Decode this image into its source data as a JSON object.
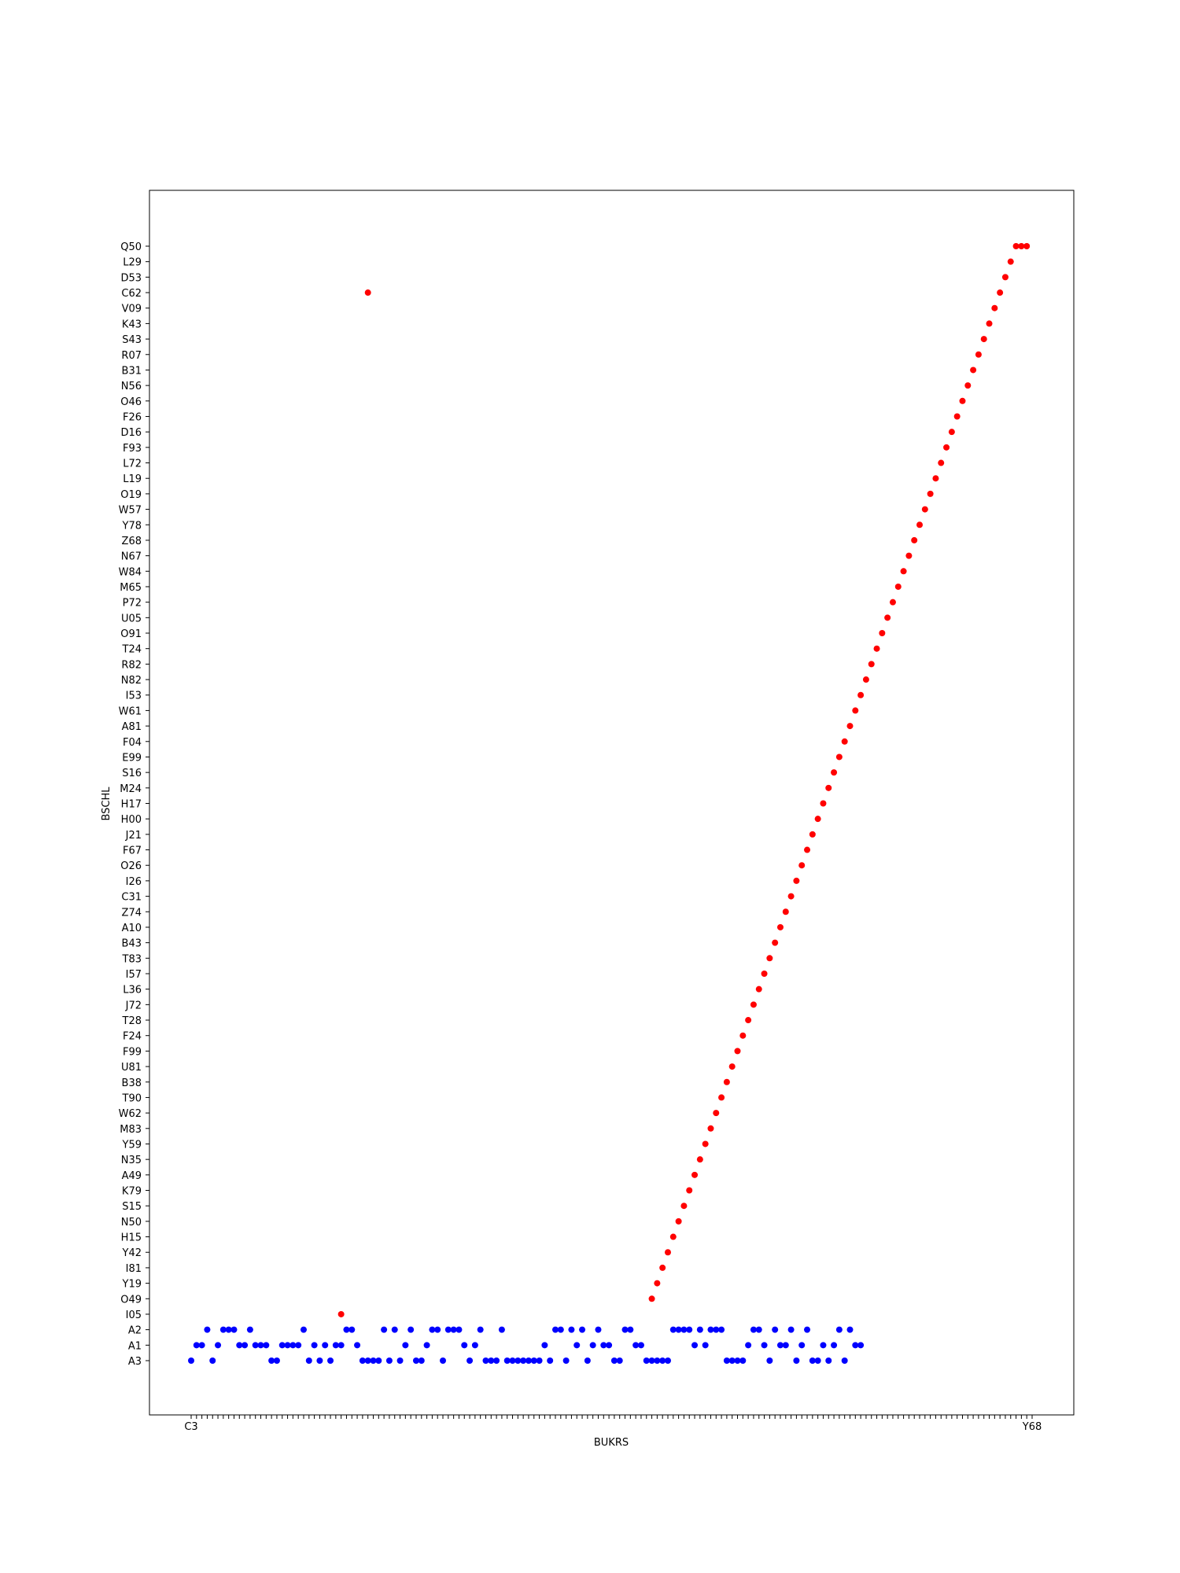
{
  "chart_data": {
    "type": "scatter",
    "title": "",
    "xlabel": "BUKRS",
    "ylabel": "BSCHL",
    "grid": false,
    "legend": "none",
    "x_categories_count": 158,
    "x_first_tick_label": "C3",
    "x_last_tick_label": "Y68",
    "y_categories": [
      "A3",
      "A1",
      "A2",
      "I05",
      "O49",
      "Y19",
      "I81",
      "Y42",
      "H15",
      "N50",
      "S15",
      "K79",
      "A49",
      "N35",
      "Y59",
      "M83",
      "W62",
      "T90",
      "B38",
      "U81",
      "F99",
      "F24",
      "T28",
      "J72",
      "L36",
      "I57",
      "T83",
      "B43",
      "A10",
      "Z74",
      "C31",
      "I26",
      "O26",
      "F67",
      "J21",
      "H00",
      "H17",
      "M24",
      "S16",
      "E99",
      "F04",
      "A81",
      "W61",
      "I53",
      "N82",
      "R82",
      "T24",
      "O91",
      "U05",
      "P72",
      "M65",
      "W84",
      "N67",
      "Z68",
      "Y78",
      "W57",
      "O19",
      "L19",
      "L72",
      "F93",
      "D16",
      "F26",
      "O46",
      "N56",
      "B31",
      "R07",
      "S43",
      "K43",
      "V09",
      "C62",
      "D53",
      "L29",
      "Q50"
    ],
    "series": [
      {
        "name": "",
        "color": "#0000ff",
        "x_indices": [
          0,
          1,
          2,
          3,
          4,
          5,
          6,
          7,
          8,
          9,
          10,
          11,
          12,
          13,
          14,
          15,
          16,
          17,
          18,
          19,
          20,
          21,
          22,
          23,
          24,
          25,
          26,
          27,
          28,
          29,
          30,
          31,
          32,
          33,
          34,
          35,
          36,
          37,
          38,
          39,
          40,
          41,
          42,
          43,
          44,
          45,
          46,
          47,
          48,
          49,
          50,
          51,
          52,
          53,
          54,
          55,
          56,
          57,
          58,
          59,
          60,
          61,
          62,
          63,
          64,
          65,
          66,
          67,
          68,
          69,
          70,
          71,
          72,
          73,
          74,
          75,
          76,
          77,
          78,
          79,
          80,
          81,
          82,
          83,
          84,
          85,
          86,
          87,
          88,
          89,
          90,
          91,
          92,
          93,
          94,
          95,
          96,
          97,
          98,
          99,
          100,
          101,
          102,
          103,
          104,
          105,
          106,
          107,
          108,
          109,
          110,
          111,
          112,
          113,
          114,
          115,
          116,
          117,
          118,
          119,
          120,
          121,
          122,
          123,
          124,
          125
        ],
        "y_values": [
          "A3",
          "A1",
          "A1",
          "A2",
          "A3",
          "A1",
          "A2",
          "A2",
          "A2",
          "A1",
          "A1",
          "A2",
          "A1",
          "A1",
          "A1",
          "A3",
          "A3",
          "A1",
          "A1",
          "A1",
          "A1",
          "A2",
          "A3",
          "A1",
          "A3",
          "A1",
          "A3",
          "A1",
          "A1",
          "A2",
          "A2",
          "A1",
          "A3",
          "A3",
          "A3",
          "A3",
          "A2",
          "A3",
          "A2",
          "A3",
          "A1",
          "A2",
          "A3",
          "A3",
          "A1",
          "A2",
          "A2",
          "A3",
          "A2",
          "A2",
          "A2",
          "A1",
          "A3",
          "A1",
          "A2",
          "A3",
          "A3",
          "A3",
          "A2",
          "A3",
          "A3",
          "A3",
          "A3",
          "A3",
          "A3",
          "A3",
          "A1",
          "A3",
          "A2",
          "A2",
          "A3",
          "A2",
          "A1",
          "A2",
          "A3",
          "A1",
          "A2",
          "A1",
          "A1",
          "A3",
          "A3",
          "A2",
          "A2",
          "A1",
          "A1",
          "A3",
          "A3",
          "A3",
          "A3",
          "A3",
          "A2",
          "A2",
          "A2",
          "A2",
          "A1",
          "A2",
          "A1",
          "A2",
          "A2",
          "A2",
          "A3",
          "A3",
          "A3",
          "A3",
          "A1",
          "A2",
          "A2",
          "A1",
          "A3",
          "A2",
          "A1",
          "A1",
          "A2",
          "A3",
          "A1",
          "A2",
          "A3",
          "A3",
          "A1",
          "A3",
          "A1",
          "A2",
          "A3",
          "A2",
          "A1",
          "A1"
        ]
      },
      {
        "name": "",
        "color": "#ff0000",
        "x_indices": [
          28,
          33,
          86,
          87,
          88,
          89,
          90,
          91,
          92,
          93,
          94,
          95,
          96,
          97,
          98,
          99,
          100,
          101,
          102,
          103,
          104,
          105,
          106,
          107,
          108,
          109,
          110,
          111,
          112,
          113,
          114,
          115,
          116,
          117,
          118,
          119,
          120,
          121,
          122,
          123,
          124,
          125,
          126,
          127,
          128,
          129,
          130,
          131,
          132,
          133,
          134,
          135,
          136,
          137,
          138,
          139,
          140,
          141,
          142,
          143,
          144,
          145,
          146,
          147,
          148,
          149,
          150,
          151,
          152,
          153,
          154,
          155,
          156
        ],
        "y_values": [
          "I05",
          "C62",
          "O49",
          "Y19",
          "I81",
          "Y42",
          "H15",
          "N50",
          "S15",
          "K79",
          "A49",
          "N35",
          "Y59",
          "M83",
          "W62",
          "T90",
          "B38",
          "U81",
          "F99",
          "F24",
          "T28",
          "J72",
          "L36",
          "I57",
          "T83",
          "B43",
          "A10",
          "Z74",
          "C31",
          "I26",
          "O26",
          "F67",
          "J21",
          "H00",
          "H17",
          "M24",
          "S16",
          "E99",
          "F04",
          "A81",
          "W61",
          "I53",
          "N82",
          "R82",
          "T24",
          "O91",
          "U05",
          "P72",
          "M65",
          "W84",
          "N67",
          "Z68",
          "Y78",
          "W57",
          "O19",
          "L19",
          "L72",
          "F93",
          "D16",
          "F26",
          "O46",
          "N56",
          "B31",
          "R07",
          "S43",
          "K43",
          "V09",
          "C62",
          "D53",
          "L29",
          "Q50",
          "Q50",
          "Q50"
        ]
      }
    ]
  }
}
